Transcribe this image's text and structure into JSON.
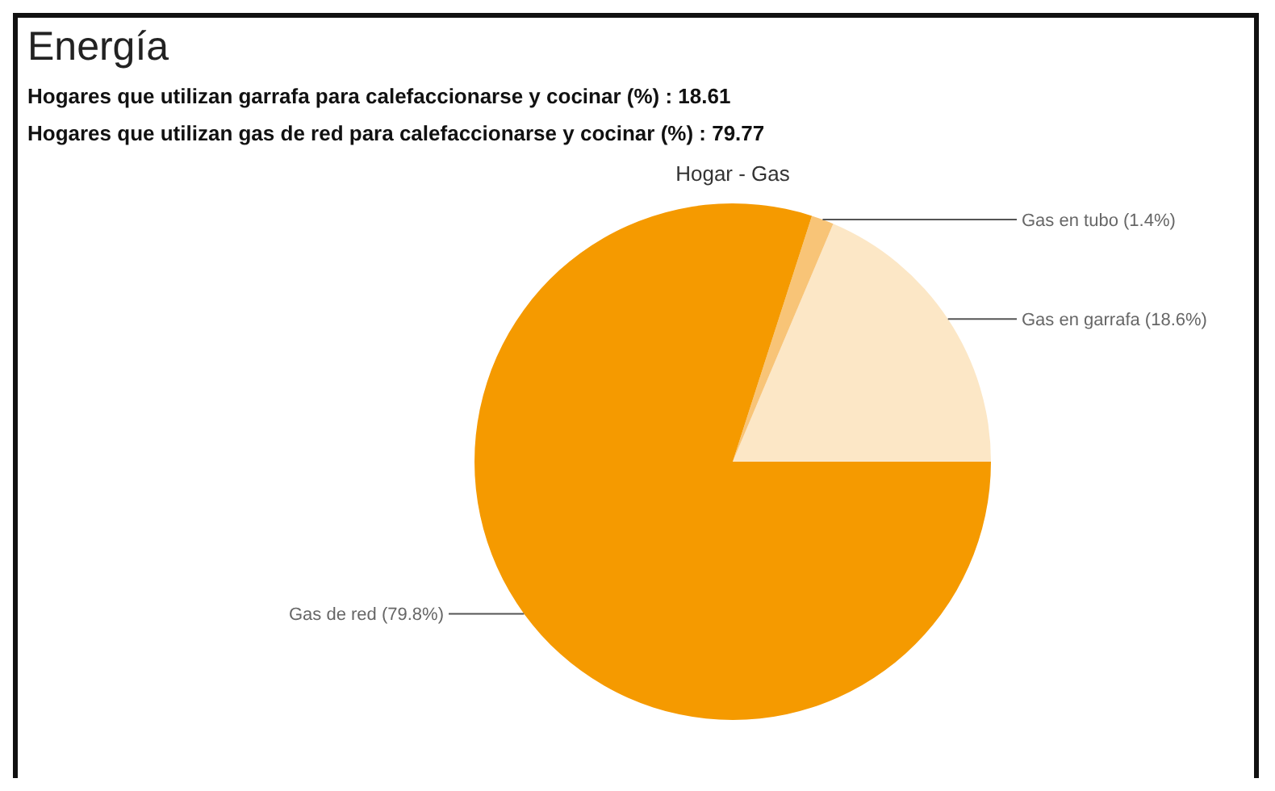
{
  "chart_data": {
    "type": "pie",
    "title": "Energía",
    "subtitle": "Hogar - Gas",
    "annotations": [
      "Hogares que utilizan garrafa para calefaccionarse y cocinar (%) : 18.61",
      "Hogares que utilizan gas de red para calefaccionarse y cocinar (%) : 79.77"
    ],
    "categories": [
      "Gas en garrafa (18.6%)",
      "Gas en tubo (1.4%)",
      "Gas de red (79.8%)"
    ],
    "values": [
      18.6,
      1.4,
      79.8
    ],
    "colors": [
      "#fce7c6",
      "#f8c477",
      "#f59a00"
    ],
    "legend": false
  }
}
